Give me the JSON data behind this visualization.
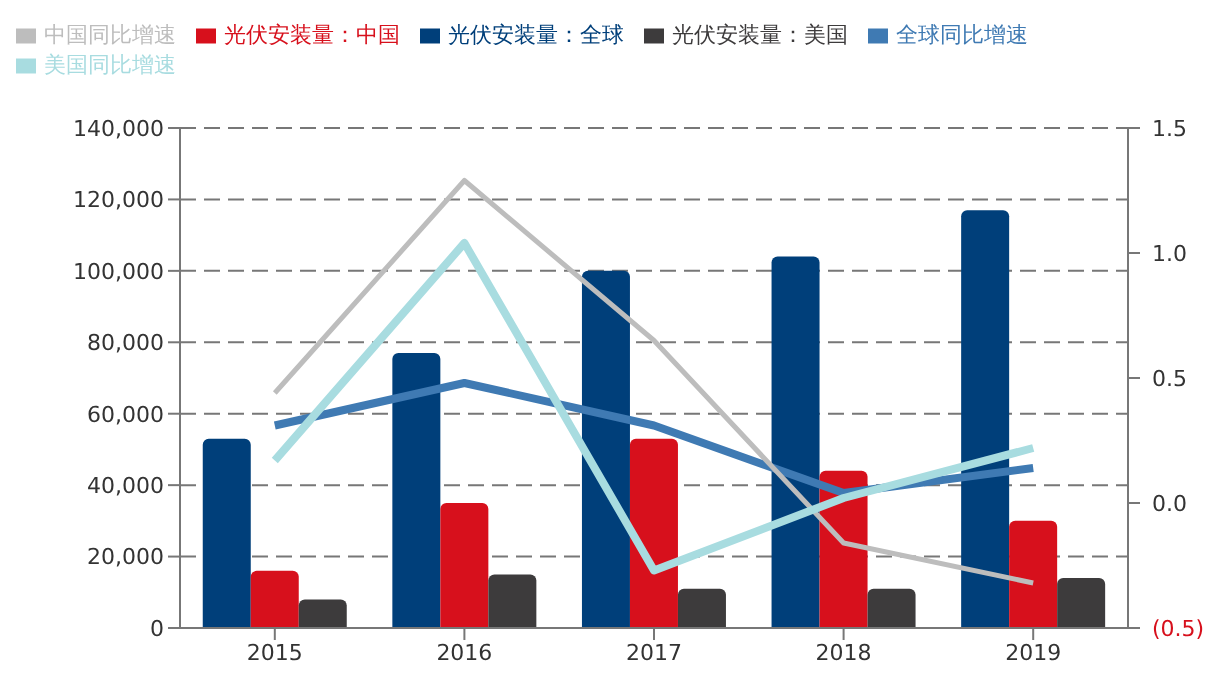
{
  "chart_data": {
    "type": "bar",
    "categories": [
      "2015",
      "2016",
      "2017",
      "2018",
      "2019"
    ],
    "series": [
      {
        "name": "光伏安装量：全球",
        "color": "#003f7a",
        "values": [
          53000,
          77000,
          100000,
          104000,
          117000
        ]
      },
      {
        "name": "光伏安装量：中国",
        "color": "#d7101c",
        "values": [
          16000,
          35000,
          53000,
          44000,
          30000
        ]
      },
      {
        "name": "光伏安装量：美国",
        "color": "#3d3b3c",
        "values": [
          8000,
          15000,
          11000,
          11000,
          14000
        ]
      },
      {
        "name": "全球同比增速",
        "type": "line",
        "axis": "y2",
        "color": "#3f7ab3",
        "values": [
          0.31,
          0.48,
          0.31,
          0.04,
          0.14
        ]
      },
      {
        "name": "中国同比增速",
        "type": "line",
        "axis": "y2",
        "color": "#bdbdbd",
        "values": [
          0.44,
          1.29,
          0.65,
          -0.16,
          -0.32
        ]
      },
      {
        "name": "美国同比增速",
        "type": "line",
        "axis": "y2",
        "color": "#a8dce0",
        "values": [
          0.17,
          1.04,
          -0.27,
          0.02,
          0.22
        ]
      }
    ],
    "ylim": [
      0,
      140000
    ],
    "yticks": [
      {
        "value": 0,
        "label": "0"
      },
      {
        "value": 20000,
        "label": "20,000"
      },
      {
        "value": 40000,
        "label": "40,000"
      },
      {
        "value": 60000,
        "label": "60,000"
      },
      {
        "value": 80000,
        "label": "80,000"
      },
      {
        "value": 100000,
        "label": "100,000"
      },
      {
        "value": 120000,
        "label": "120,000"
      },
      {
        "value": 140000,
        "label": "140,000"
      }
    ],
    "y2lim": [
      -0.5,
      1.5
    ],
    "y2ticks": [
      {
        "value": -0.5,
        "label": "(0.5)"
      },
      {
        "value": 0,
        "label": "0.0"
      },
      {
        "value": 0.5,
        "label": "0.5"
      },
      {
        "value": 1,
        "label": "1.0"
      },
      {
        "value": 1.5,
        "label": "1.5"
      }
    ],
    "grid": "y",
    "legend": "top",
    "marker": "none"
  }
}
